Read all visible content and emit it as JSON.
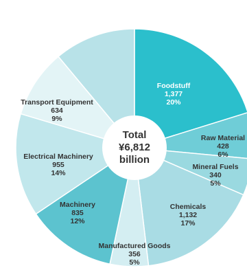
{
  "chart_data": {
    "type": "pie",
    "center_label": {
      "line1": "Total",
      "line2": "¥6,812",
      "line3": "billion"
    },
    "slices": [
      {
        "name": "Foodstuff",
        "value_text": "1,377",
        "percent_text": "20%",
        "value": 1377,
        "color": "#2bbfcc",
        "label_color": "#ffffff"
      },
      {
        "name": "Raw Material",
        "value_text": "428",
        "percent_text": "6%",
        "value": 428,
        "color": "#6fcdd7",
        "label_color": "#333333"
      },
      {
        "name": "Mineral Fuels",
        "value_text": "340",
        "percent_text": "5%",
        "value": 340,
        "color": "#9ad9e0",
        "label_color": "#333333"
      },
      {
        "name": "Chemicals",
        "value_text": "1,132",
        "percent_text": "17%",
        "value": 1132,
        "color": "#a9dce4",
        "label_color": "#333333"
      },
      {
        "name": "Manufactured Goods",
        "value_text": "356",
        "percent_text": "5%",
        "value": 356,
        "color": "#d4eef2",
        "label_color": "#333333"
      },
      {
        "name": "Machinery",
        "value_text": "835",
        "percent_text": "12%",
        "value": 835,
        "color": "#5cc3cf",
        "label_color": "#333333"
      },
      {
        "name": "Electrical Machinery",
        "value_text": "955",
        "percent_text": "14%",
        "value": 955,
        "color": "#c1e7ec",
        "label_color": "#333333"
      },
      {
        "name": "Transport Equipment",
        "value_text": "634",
        "percent_text": "9%",
        "value": 634,
        "color": "#e3f4f6",
        "label_color": "#333333"
      },
      {
        "name": "",
        "value": 755,
        "color": "#b8e2e8",
        "label_color": "#333333"
      }
    ]
  }
}
